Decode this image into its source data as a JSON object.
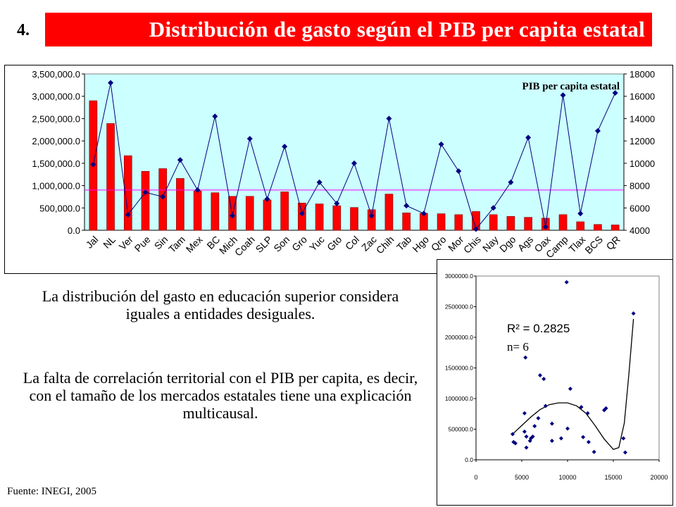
{
  "slide_number": "4.",
  "title": "Distribución de gasto según el PIB per capita estatal",
  "paragraphs": [
    "La distribución del gasto en educación superior considera iguales a entidades desiguales.",
    "La falta de correlación territorial con el PIB per capita, es decir, con el tamaño de los mercados estatales tiene una explicación multicausal."
  ],
  "source": "Fuente: INEGI, 2005",
  "colors": {
    "title_bg": "#ff0000",
    "title_text": "#ffffff",
    "plot_bg": "#ccffff",
    "bar": "#ff0000",
    "line": "#000080",
    "ref_line": "#ff00ff"
  },
  "chart_data": [
    {
      "type": "bar",
      "annotation": "PIB per capita estatal",
      "categories": [
        "Jal",
        "NL",
        "Ver",
        "Pue",
        "Sin",
        "Tam",
        "Mex",
        "BC",
        "Mich",
        "Coah",
        "SLP",
        "Son",
        "Gro",
        "Yuc",
        "Gto",
        "Col",
        "Zac",
        "Chih",
        "Tab",
        "Hgo",
        "Qro",
        "Mor",
        "Chis",
        "Nay",
        "Dgo",
        "Ags",
        "Oax",
        "Camp",
        "Tlax",
        "BCS",
        "QR"
      ],
      "ylim_left": [
        0,
        3500000
      ],
      "yticks_left": [
        "0.0",
        "500,000.0",
        "1,000,000.0",
        "1,500,000.0",
        "2,000,000.0",
        "2,500,000.0",
        "3,000,000.0",
        "3,500,000.0"
      ],
      "ylim_right": [
        4000,
        18000
      ],
      "yticks_right": [
        "4000",
        "6000",
        "8000",
        "10000",
        "12000",
        "14000",
        "16000",
        "18000"
      ],
      "reference_line": 900000,
      "series": [
        {
          "axis": "left",
          "kind": "bar",
          "values": [
            2900000,
            2390000,
            1670000,
            1320000,
            1380000,
            1160000,
            880000,
            840000,
            760000,
            760000,
            680000,
            860000,
            610000,
            590000,
            550000,
            510000,
            460000,
            810000,
            390000,
            380000,
            370000,
            350000,
            420000,
            350000,
            310000,
            290000,
            270000,
            350000,
            190000,
            130000,
            120000
          ]
        },
        {
          "name": "PIB per capita estatal",
          "axis": "right",
          "kind": "line",
          "values": [
            9900,
            17200,
            5400,
            7400,
            7000,
            10300,
            7600,
            14200,
            5300,
            12200,
            6800,
            11500,
            5500,
            8300,
            6400,
            10000,
            5300,
            14000,
            6200,
            5500,
            11700,
            9300,
            4100,
            6000,
            8300,
            12300,
            4300,
            16100,
            5500,
            12900,
            16300
          ]
        }
      ]
    },
    {
      "type": "scatter",
      "annotations": [
        "R² = 0.2825",
        "n= 6"
      ],
      "xlim": [
        0,
        20000
      ],
      "xticks": [
        "0",
        "5000",
        "10000",
        "15000",
        "20000"
      ],
      "ylim": [
        0,
        3000000
      ],
      "yticks": [
        "0.0",
        "500000.0",
        "1000000.0",
        "1500000.0",
        "2000000.0",
        "2500000.0",
        "3000000.0"
      ],
      "points": [
        [
          4000,
          420000
        ],
        [
          4100,
          290000
        ],
        [
          4300,
          270000
        ],
        [
          5300,
          760000
        ],
        [
          5300,
          460000
        ],
        [
          5400,
          1670000
        ],
        [
          5500,
          380000
        ],
        [
          5500,
          200000
        ],
        [
          5900,
          310000
        ],
        [
          6000,
          350000
        ],
        [
          6200,
          380000
        ],
        [
          6400,
          550000
        ],
        [
          6800,
          680000
        ],
        [
          7000,
          1380000
        ],
        [
          7400,
          1320000
        ],
        [
          7600,
          880000
        ],
        [
          8300,
          310000
        ],
        [
          8300,
          590000
        ],
        [
          9300,
          350000
        ],
        [
          9900,
          2900000
        ],
        [
          10000,
          510000
        ],
        [
          10300,
          1160000
        ],
        [
          11500,
          860000
        ],
        [
          11700,
          370000
        ],
        [
          12200,
          760000
        ],
        [
          12300,
          290000
        ],
        [
          12900,
          130000
        ],
        [
          14000,
          810000
        ],
        [
          14200,
          840000
        ],
        [
          16100,
          350000
        ],
        [
          16300,
          120000
        ],
        [
          17200,
          2390000
        ]
      ],
      "trendline": [
        [
          4000,
          420000
        ],
        [
          5000,
          560000
        ],
        [
          6000,
          700000
        ],
        [
          7000,
          820000
        ],
        [
          8000,
          900000
        ],
        [
          9000,
          930000
        ],
        [
          10000,
          930000
        ],
        [
          11000,
          880000
        ],
        [
          12000,
          760000
        ],
        [
          13000,
          560000
        ],
        [
          14000,
          340000
        ],
        [
          15000,
          170000
        ],
        [
          15600,
          200000
        ],
        [
          16200,
          600000
        ],
        [
          16700,
          1400000
        ],
        [
          17200,
          2300000
        ]
      ]
    }
  ]
}
